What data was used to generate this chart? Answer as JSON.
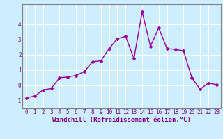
{
  "x": [
    0,
    1,
    2,
    3,
    4,
    5,
    6,
    7,
    8,
    9,
    10,
    11,
    12,
    13,
    14,
    15,
    16,
    17,
    18,
    19,
    20,
    21,
    22,
    23
  ],
  "y": [
    -0.8,
    -0.7,
    -0.3,
    -0.2,
    0.5,
    0.55,
    0.65,
    0.9,
    1.55,
    1.6,
    2.4,
    3.05,
    3.2,
    1.75,
    4.8,
    2.55,
    3.75,
    2.4,
    2.35,
    2.25,
    0.5,
    -0.25,
    0.15,
    0.05
  ],
  "line_color": "#990099",
  "marker": "D",
  "markersize": 2,
  "linewidth": 1.0,
  "xlabel": "Windchill (Refroidissement éolien,°C)",
  "xlim": [
    -0.5,
    23.5
  ],
  "ylim": [
    -1.5,
    5.3
  ],
  "yticks": [
    -1,
    0,
    1,
    2,
    3,
    4
  ],
  "xticks": [
    0,
    1,
    2,
    3,
    4,
    5,
    6,
    7,
    8,
    9,
    10,
    11,
    12,
    13,
    14,
    15,
    16,
    17,
    18,
    19,
    20,
    21,
    22,
    23
  ],
  "bg_color": "#cceeff",
  "grid_color": "#ffffff",
  "tick_color": "#800080",
  "spine_color": "#808080",
  "xlabel_color": "#800080",
  "xlabel_fontsize": 6.5,
  "tick_fontsize": 5.5
}
